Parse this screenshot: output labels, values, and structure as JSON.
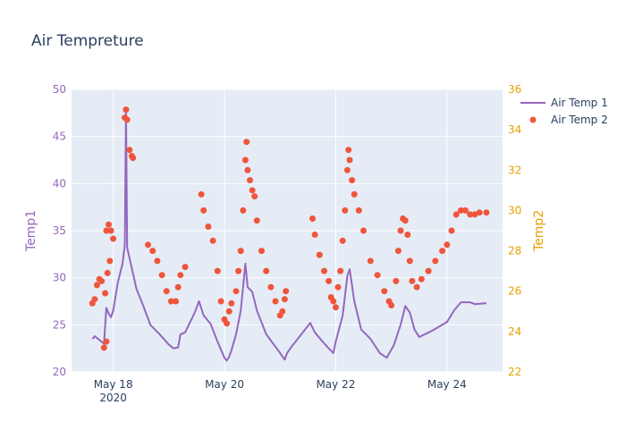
{
  "chart_data": {
    "type": "line",
    "title": "Air Tempreture",
    "xlabel": "",
    "ylabel_left": "Temp1",
    "ylabel_right": "Temp2",
    "x_axis": {
      "type": "date",
      "range": [
        "2020-05-17T06:00",
        "2020-05-25T00:00"
      ],
      "ticks": [
        {
          "x": "2020-05-18T00:00",
          "label": "May 18",
          "sublabel": "2020"
        },
        {
          "x": "2020-05-20T00:00",
          "label": "May 20",
          "sublabel": ""
        },
        {
          "x": "2020-05-22T00:00",
          "label": "May 22",
          "sublabel": ""
        },
        {
          "x": "2020-05-24T00:00",
          "label": "May 24",
          "sublabel": ""
        }
      ]
    },
    "y_left": {
      "range": [
        20,
        50
      ],
      "ticks": [
        20,
        25,
        30,
        35,
        40,
        45,
        50
      ],
      "color": "#9467bd"
    },
    "y_right": {
      "range": [
        22,
        36
      ],
      "ticks": [
        22,
        24,
        26,
        28,
        30,
        32,
        34,
        36
      ],
      "tick_labels": [
        "22",
        "24",
        "26",
        "28",
        "30",
        "32",
        "34",
        "36"
      ],
      "color": "#e6a000"
    },
    "grid": true,
    "legend": {
      "position": "top-right",
      "entries": [
        "Air Temp 1",
        "Air Temp 2"
      ]
    },
    "series": [
      {
        "name": "Air Temp 1",
        "kind": "line",
        "axis": "left",
        "color": "#9467bd",
        "points": [
          [
            "2020-05-17T15:00",
            23.5
          ],
          [
            "2020-05-17T16:00",
            23.8
          ],
          [
            "2020-05-17T17:00",
            23.6
          ],
          [
            "2020-05-17T18:00",
            23.4
          ],
          [
            "2020-05-17T19:00",
            23.2
          ],
          [
            "2020-05-17T20:00",
            23.0
          ],
          [
            "2020-05-17T21:00",
            26.8
          ],
          [
            "2020-05-17T22:00",
            26.2
          ],
          [
            "2020-05-17T23:00",
            25.8
          ],
          [
            "2020-05-18T00:00",
            26.5
          ],
          [
            "2020-05-18T02:00",
            29.5
          ],
          [
            "2020-05-18T04:00",
            31.5
          ],
          [
            "2020-05-18T05:00",
            33.5
          ],
          [
            "2020-05-18T05:30",
            48.0
          ],
          [
            "2020-05-18T06:00",
            33.2
          ],
          [
            "2020-05-18T08:00",
            31.0
          ],
          [
            "2020-05-18T10:00",
            28.8
          ],
          [
            "2020-05-18T13:00",
            27.0
          ],
          [
            "2020-05-18T16:00",
            25.0
          ],
          [
            "2020-05-18T20:00",
            24.0
          ],
          [
            "2020-05-19T00:00",
            22.9
          ],
          [
            "2020-05-19T02:00",
            22.5
          ],
          [
            "2020-05-19T04:00",
            22.6
          ],
          [
            "2020-05-19T05:00",
            24.0
          ],
          [
            "2020-05-19T07:00",
            24.2
          ],
          [
            "2020-05-19T11:00",
            26.2
          ],
          [
            "2020-05-19T13:00",
            27.5
          ],
          [
            "2020-05-19T15:00",
            26.0
          ],
          [
            "2020-05-19T18:00",
            25.1
          ],
          [
            "2020-05-19T21:00",
            23.2
          ],
          [
            "2020-05-20T00:00",
            21.5
          ],
          [
            "2020-05-20T01:00",
            21.2
          ],
          [
            "2020-05-20T02:00",
            21.6
          ],
          [
            "2020-05-20T03:00",
            22.3
          ],
          [
            "2020-05-20T05:00",
            24.0
          ],
          [
            "2020-05-20T07:00",
            26.5
          ],
          [
            "2020-05-20T09:00",
            31.5
          ],
          [
            "2020-05-20T10:00",
            29.0
          ],
          [
            "2020-05-20T12:00",
            28.5
          ],
          [
            "2020-05-20T14:00",
            26.5
          ],
          [
            "2020-05-20T18:00",
            24.0
          ],
          [
            "2020-05-21T00:00",
            22.0
          ],
          [
            "2020-05-21T02:00",
            21.3
          ],
          [
            "2020-05-21T03:00",
            22.0
          ],
          [
            "2020-05-21T05:00",
            22.7
          ],
          [
            "2020-05-21T13:00",
            25.2
          ],
          [
            "2020-05-21T15:00",
            24.2
          ],
          [
            "2020-05-21T18:00",
            23.3
          ],
          [
            "2020-05-21T21:00",
            22.5
          ],
          [
            "2020-05-21T23:00",
            22.0
          ],
          [
            "2020-05-22T00:00",
            23.2
          ],
          [
            "2020-05-22T03:00",
            26.0
          ],
          [
            "2020-05-22T05:00",
            30.2
          ],
          [
            "2020-05-22T06:00",
            30.9
          ],
          [
            "2020-05-22T08:00",
            27.5
          ],
          [
            "2020-05-22T11:00",
            24.5
          ],
          [
            "2020-05-22T15:00",
            23.5
          ],
          [
            "2020-05-22T19:00",
            22.0
          ],
          [
            "2020-05-22T22:00",
            21.5
          ],
          [
            "2020-05-23T01:00",
            22.8
          ],
          [
            "2020-05-23T04:00",
            25.0
          ],
          [
            "2020-05-23T06:00",
            27.0
          ],
          [
            "2020-05-23T08:00",
            26.3
          ],
          [
            "2020-05-23T10:00",
            24.5
          ],
          [
            "2020-05-23T12:00",
            23.7
          ],
          [
            "2020-05-23T17:00",
            24.3
          ],
          [
            "2020-05-24T00:00",
            25.3
          ],
          [
            "2020-05-24T03:00",
            26.5
          ],
          [
            "2020-05-24T06:00",
            27.4
          ],
          [
            "2020-05-24T10:00",
            27.4
          ],
          [
            "2020-05-24T12:00",
            27.2
          ],
          [
            "2020-05-24T17:00",
            27.3
          ]
        ]
      },
      {
        "name": "Air Temp 2",
        "kind": "markers",
        "axis": "right",
        "color": "#ef553b",
        "points": [
          [
            "2020-05-17T15:00",
            25.4
          ],
          [
            "2020-05-17T16:00",
            25.6
          ],
          [
            "2020-05-17T17:00",
            26.3
          ],
          [
            "2020-05-17T18:00",
            26.6
          ],
          [
            "2020-05-17T19:00",
            26.5
          ],
          [
            "2020-05-17T20:30",
            25.9
          ],
          [
            "2020-05-17T21:00",
            29.0
          ],
          [
            "2020-05-17T22:00",
            29.3
          ],
          [
            "2020-05-17T23:00",
            29.0
          ],
          [
            "2020-05-18T00:00",
            28.6
          ],
          [
            "2020-05-17T20:00",
            23.2
          ],
          [
            "2020-05-17T21:00",
            23.5
          ],
          [
            "2020-05-17T21:30",
            26.9
          ],
          [
            "2020-05-17T22:30",
            27.5
          ],
          [
            "2020-05-18T05:00",
            34.6
          ],
          [
            "2020-05-18T05:30",
            35.0
          ],
          [
            "2020-05-18T06:00",
            34.5
          ],
          [
            "2020-05-18T07:00",
            33.0
          ],
          [
            "2020-05-18T08:00",
            32.7
          ],
          [
            "2020-05-18T08:30",
            32.6
          ],
          [
            "2020-05-18T15:00",
            28.3
          ],
          [
            "2020-05-18T17:00",
            28.0
          ],
          [
            "2020-05-18T19:00",
            27.5
          ],
          [
            "2020-05-18T21:00",
            26.8
          ],
          [
            "2020-05-18T23:00",
            26.0
          ],
          [
            "2020-05-19T01:00",
            25.5
          ],
          [
            "2020-05-19T03:00",
            25.5
          ],
          [
            "2020-05-19T04:00",
            26.2
          ],
          [
            "2020-05-19T05:00",
            26.8
          ],
          [
            "2020-05-19T07:00",
            27.2
          ],
          [
            "2020-05-19T14:00",
            30.8
          ],
          [
            "2020-05-19T15:00",
            30.0
          ],
          [
            "2020-05-19T17:00",
            29.2
          ],
          [
            "2020-05-19T19:00",
            28.5
          ],
          [
            "2020-05-19T21:00",
            27.0
          ],
          [
            "2020-05-19T22:30",
            25.5
          ],
          [
            "2020-05-20T00:00",
            24.6
          ],
          [
            "2020-05-20T01:00",
            24.4
          ],
          [
            "2020-05-20T02:00",
            25.0
          ],
          [
            "2020-05-20T03:00",
            25.4
          ],
          [
            "2020-05-20T05:00",
            26.0
          ],
          [
            "2020-05-20T06:00",
            27.0
          ],
          [
            "2020-05-20T07:00",
            28.0
          ],
          [
            "2020-05-20T08:00",
            30.0
          ],
          [
            "2020-05-20T09:00",
            32.5
          ],
          [
            "2020-05-20T09:30",
            33.4
          ],
          [
            "2020-05-20T10:00",
            32.0
          ],
          [
            "2020-05-20T11:00",
            31.5
          ],
          [
            "2020-05-20T12:00",
            31.0
          ],
          [
            "2020-05-20T13:00",
            30.7
          ],
          [
            "2020-05-20T14:00",
            29.5
          ],
          [
            "2020-05-20T16:00",
            28.0
          ],
          [
            "2020-05-20T18:00",
            27.0
          ],
          [
            "2020-05-20T20:00",
            26.2
          ],
          [
            "2020-05-20T22:00",
            25.5
          ],
          [
            "2020-05-21T00:00",
            24.8
          ],
          [
            "2020-05-21T01:00",
            25.0
          ],
          [
            "2020-05-21T02:00",
            25.6
          ],
          [
            "2020-05-21T02:30",
            26.0
          ],
          [
            "2020-05-21T14:00",
            29.6
          ],
          [
            "2020-05-21T15:00",
            28.8
          ],
          [
            "2020-05-21T17:00",
            27.8
          ],
          [
            "2020-05-21T19:00",
            27.0
          ],
          [
            "2020-05-21T21:00",
            26.5
          ],
          [
            "2020-05-21T22:00",
            25.7
          ],
          [
            "2020-05-21T23:00",
            25.5
          ],
          [
            "2020-05-22T00:00",
            25.2
          ],
          [
            "2020-05-22T01:00",
            26.2
          ],
          [
            "2020-05-22T02:00",
            27.0
          ],
          [
            "2020-05-22T03:00",
            28.5
          ],
          [
            "2020-05-22T04:00",
            30.0
          ],
          [
            "2020-05-22T05:00",
            32.0
          ],
          [
            "2020-05-22T05:30",
            33.0
          ],
          [
            "2020-05-22T06:00",
            32.5
          ],
          [
            "2020-05-22T07:00",
            31.5
          ],
          [
            "2020-05-22T08:00",
            30.8
          ],
          [
            "2020-05-22T10:00",
            30.0
          ],
          [
            "2020-05-22T12:00",
            29.0
          ],
          [
            "2020-05-22T15:00",
            27.5
          ],
          [
            "2020-05-22T18:00",
            26.8
          ],
          [
            "2020-05-22T21:00",
            26.0
          ],
          [
            "2020-05-22T23:00",
            25.5
          ],
          [
            "2020-05-23T00:00",
            25.3
          ],
          [
            "2020-05-23T02:00",
            26.5
          ],
          [
            "2020-05-23T03:00",
            28.0
          ],
          [
            "2020-05-23T04:00",
            29.0
          ],
          [
            "2020-05-23T05:00",
            29.6
          ],
          [
            "2020-05-23T06:00",
            29.5
          ],
          [
            "2020-05-23T07:00",
            28.8
          ],
          [
            "2020-05-23T08:00",
            27.5
          ],
          [
            "2020-05-23T09:00",
            26.5
          ],
          [
            "2020-05-23T11:00",
            26.2
          ],
          [
            "2020-05-23T13:00",
            26.6
          ],
          [
            "2020-05-23T16:00",
            27.0
          ],
          [
            "2020-05-23T19:00",
            27.5
          ],
          [
            "2020-05-23T22:00",
            28.0
          ],
          [
            "2020-05-24T00:00",
            28.3
          ],
          [
            "2020-05-24T02:00",
            29.0
          ],
          [
            "2020-05-24T04:00",
            29.8
          ],
          [
            "2020-05-24T06:00",
            30.0
          ],
          [
            "2020-05-24T08:00",
            30.0
          ],
          [
            "2020-05-24T10:00",
            29.8
          ],
          [
            "2020-05-24T12:00",
            29.8
          ],
          [
            "2020-05-24T14:00",
            29.9
          ],
          [
            "2020-05-24T17:00",
            29.9
          ]
        ]
      }
    ]
  }
}
